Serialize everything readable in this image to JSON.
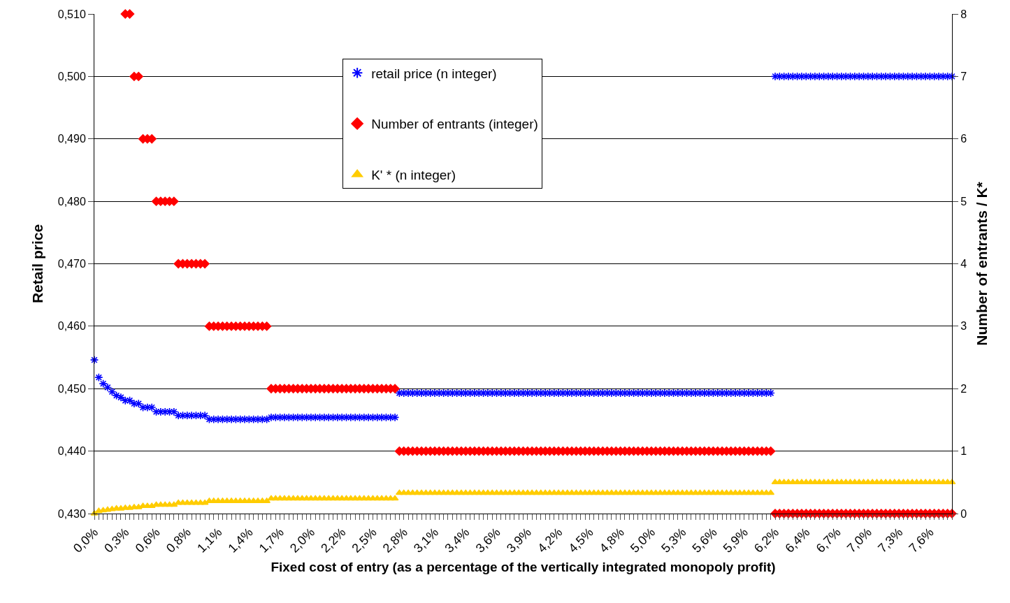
{
  "chart_data": {
    "type": "scatter",
    "xlabel": "Fixed cost of entry (as a percentage of the vertically integrated monopoly profit)",
    "ylabel": "Retail price",
    "y2label": "Number of entrants / K*",
    "categories": [
      "0,0%",
      null,
      null,
      null,
      null,
      null,
      null,
      "0,3%",
      null,
      null,
      null,
      null,
      null,
      null,
      "0,6%",
      null,
      null,
      null,
      null,
      null,
      null,
      "0,8%",
      null,
      null,
      null,
      null,
      null,
      null,
      "1,1%",
      null,
      null,
      null,
      null,
      null,
      null,
      "1,4%",
      null,
      null,
      null,
      null,
      null,
      null,
      "1,7%",
      null,
      null,
      null,
      null,
      null,
      null,
      "2,0%",
      null,
      null,
      null,
      null,
      null,
      null,
      "2,2%",
      null,
      null,
      null,
      null,
      null,
      null,
      "2,5%",
      null,
      null,
      null,
      null,
      null,
      null,
      "2,8%",
      null,
      null,
      null,
      null,
      null,
      null,
      "3,1%",
      null,
      null,
      null,
      null,
      null,
      null,
      "3,4%",
      null,
      null,
      null,
      null,
      null,
      null,
      "3,6%",
      null,
      null,
      null,
      null,
      null,
      null,
      "3,9%",
      null,
      null,
      null,
      null,
      null,
      null,
      "4,2%",
      null,
      null,
      null,
      null,
      null,
      null,
      "4,5%",
      null,
      null,
      null,
      null,
      null,
      null,
      "4,8%",
      null,
      null,
      null,
      null,
      null,
      null,
      "5,0%",
      null,
      null,
      null,
      null,
      null,
      null,
      "5,3%",
      null,
      null,
      null,
      null,
      null,
      null,
      "5,6%",
      null,
      null,
      null,
      null,
      null,
      null,
      "5,9%",
      null,
      null,
      null,
      null,
      null,
      null,
      "6,2%",
      null,
      null,
      null,
      null,
      null,
      null,
      "6,4%",
      null,
      null,
      null,
      null,
      null,
      null,
      "6,7%",
      null,
      null,
      null,
      null,
      null,
      null,
      "7,0%",
      null,
      null,
      null,
      null,
      null,
      null,
      "7,3%",
      null,
      null,
      null,
      null,
      null,
      null,
      "7,6%",
      null,
      null,
      null,
      null,
      null
    ],
    "ylim": [
      0.43,
      0.51
    ],
    "yticks": [
      {
        "value": 0.43,
        "label": "0,430"
      },
      {
        "value": 0.44,
        "label": "0,440"
      },
      {
        "value": 0.45,
        "label": "0,450"
      },
      {
        "value": 0.46,
        "label": "0,460"
      },
      {
        "value": 0.47,
        "label": "0,470"
      },
      {
        "value": 0.48,
        "label": "0,480"
      },
      {
        "value": 0.49,
        "label": "0,490"
      },
      {
        "value": 0.5,
        "label": "0,500"
      },
      {
        "value": 0.51,
        "label": "0,510"
      }
    ],
    "y2lim": [
      0,
      8
    ],
    "y2ticks": [
      0,
      1,
      2,
      3,
      4,
      5,
      6,
      7,
      8
    ],
    "grid": "y",
    "legend": "top",
    "series": [
      {
        "name": "retail price (n integer)",
        "color": "#0000ff",
        "marker": "cross",
        "values": [
          0.4546,
          0.4518,
          0.4508,
          0.4502,
          0.4495,
          0.4489,
          0.4486,
          0.4481,
          0.4481,
          0.4476,
          0.4476,
          0.447,
          0.447,
          0.447,
          0.4463,
          0.4463,
          0.4463,
          0.4463,
          0.4463,
          0.4457,
          0.4457,
          0.4457,
          0.4457,
          0.4457,
          0.4457,
          0.4457,
          0.4451,
          0.4451,
          0.4451,
          0.4451,
          0.4451,
          0.4451,
          0.4451,
          0.4451,
          0.4451,
          0.4451,
          0.4451,
          0.4451,
          0.4451,
          0.4451,
          0.4454,
          0.4454,
          0.4454,
          0.4454,
          0.4454,
          0.4454,
          0.4454,
          0.4454,
          0.4454,
          0.4454,
          0.4454,
          0.4454,
          0.4454,
          0.4454,
          0.4454,
          0.4454,
          0.4454,
          0.4454,
          0.4454,
          0.4454,
          0.4454,
          0.4454,
          0.4454,
          0.4454,
          0.4454,
          0.4454,
          0.4454,
          0.4454,
          0.4454,
          0.4493,
          0.4493,
          0.4493,
          0.4493,
          0.4493,
          0.4493,
          0.4493,
          0.4493,
          0.4493,
          0.4493,
          0.4493,
          0.4493,
          0.4493,
          0.4493,
          0.4493,
          0.4493,
          0.4493,
          0.4493,
          0.4493,
          0.4493,
          0.4493,
          0.4493,
          0.4493,
          0.4493,
          0.4493,
          0.4493,
          0.4493,
          0.4493,
          0.4493,
          0.4493,
          0.4493,
          0.4493,
          0.4493,
          0.4493,
          0.4493,
          0.4493,
          0.4493,
          0.4493,
          0.4493,
          0.4493,
          0.4493,
          0.4493,
          0.4493,
          0.4493,
          0.4493,
          0.4493,
          0.4493,
          0.4493,
          0.4493,
          0.4493,
          0.4493,
          0.4493,
          0.4493,
          0.4493,
          0.4493,
          0.4493,
          0.4493,
          0.4493,
          0.4493,
          0.4493,
          0.4493,
          0.4493,
          0.4493,
          0.4493,
          0.4493,
          0.4493,
          0.4493,
          0.4493,
          0.4493,
          0.4493,
          0.4493,
          0.4493,
          0.4493,
          0.4493,
          0.4493,
          0.4493,
          0.4493,
          0.4493,
          0.4493,
          0.4493,
          0.4493,
          0.4493,
          0.4493,
          0.4493,
          0.4493,
          0.5,
          0.5,
          0.5,
          0.5,
          0.5,
          0.5,
          0.5,
          0.5,
          0.5,
          0.5,
          0.5,
          0.5,
          0.5,
          0.5,
          0.5,
          0.5,
          0.5,
          0.5,
          0.5,
          0.5,
          0.5,
          0.5,
          0.5,
          0.5,
          0.5,
          0.5,
          0.5,
          0.5,
          0.5,
          0.5,
          0.5,
          0.5,
          0.5,
          0.5,
          0.5,
          0.5,
          0.5,
          0.5,
          0.5,
          0.5,
          0.5
        ]
      },
      {
        "name": "Number of entrants (integer)",
        "color": "#ff0000",
        "marker": "diamond",
        "axis": "y2",
        "values": [
          null,
          null,
          null,
          null,
          null,
          null,
          null,
          8,
          8,
          7,
          7,
          6,
          6,
          6,
          5,
          5,
          5,
          5,
          5,
          4,
          4,
          4,
          4,
          4,
          4,
          4,
          3,
          3,
          3,
          3,
          3,
          3,
          3,
          3,
          3,
          3,
          3,
          3,
          3,
          3,
          2,
          2,
          2,
          2,
          2,
          2,
          2,
          2,
          2,
          2,
          2,
          2,
          2,
          2,
          2,
          2,
          2,
          2,
          2,
          2,
          2,
          2,
          2,
          2,
          2,
          2,
          2,
          2,
          2,
          1,
          1,
          1,
          1,
          1,
          1,
          1,
          1,
          1,
          1,
          1,
          1,
          1,
          1,
          1,
          1,
          1,
          1,
          1,
          1,
          1,
          1,
          1,
          1,
          1,
          1,
          1,
          1,
          1,
          1,
          1,
          1,
          1,
          1,
          1,
          1,
          1,
          1,
          1,
          1,
          1,
          1,
          1,
          1,
          1,
          1,
          1,
          1,
          1,
          1,
          1,
          1,
          1,
          1,
          1,
          1,
          1,
          1,
          1,
          1,
          1,
          1,
          1,
          1,
          1,
          1,
          1,
          1,
          1,
          1,
          1,
          1,
          1,
          1,
          1,
          1,
          1,
          1,
          1,
          1,
          1,
          1,
          1,
          1,
          1,
          0,
          0,
          0,
          0,
          0,
          0,
          0,
          0,
          0,
          0,
          0,
          0,
          0,
          0,
          0,
          0,
          0,
          0,
          0,
          0,
          0,
          0,
          0,
          0,
          0,
          0,
          0,
          0,
          0,
          0,
          0,
          0,
          0,
          0,
          0,
          0,
          0,
          0,
          0,
          0,
          0
        ]
      },
      {
        "name": "K' * (n integer)",
        "color": "#ffcc00",
        "marker": "triangle",
        "axis": "y2",
        "values": [
          0,
          0.04,
          0.05,
          0.06,
          0.07,
          0.08,
          0.08,
          0.09,
          0.09,
          0.1,
          0.1,
          0.12,
          0.12,
          0.12,
          0.14,
          0.14,
          0.14,
          0.14,
          0.14,
          0.17,
          0.17,
          0.17,
          0.17,
          0.17,
          0.17,
          0.17,
          0.2,
          0.2,
          0.2,
          0.2,
          0.2,
          0.2,
          0.2,
          0.2,
          0.2,
          0.2,
          0.2,
          0.2,
          0.2,
          0.2,
          0.24,
          0.24,
          0.24,
          0.24,
          0.24,
          0.24,
          0.24,
          0.24,
          0.24,
          0.24,
          0.24,
          0.24,
          0.24,
          0.24,
          0.24,
          0.24,
          0.24,
          0.24,
          0.24,
          0.24,
          0.24,
          0.24,
          0.24,
          0.24,
          0.24,
          0.24,
          0.24,
          0.24,
          0.24,
          0.33,
          0.33,
          0.33,
          0.33,
          0.33,
          0.33,
          0.33,
          0.33,
          0.33,
          0.33,
          0.33,
          0.33,
          0.33,
          0.33,
          0.33,
          0.33,
          0.33,
          0.33,
          0.33,
          0.33,
          0.33,
          0.33,
          0.33,
          0.33,
          0.33,
          0.33,
          0.33,
          0.33,
          0.33,
          0.33,
          0.33,
          0.33,
          0.33,
          0.33,
          0.33,
          0.33,
          0.33,
          0.33,
          0.33,
          0.33,
          0.33,
          0.33,
          0.33,
          0.33,
          0.33,
          0.33,
          0.33,
          0.33,
          0.33,
          0.33,
          0.33,
          0.33,
          0.33,
          0.33,
          0.33,
          0.33,
          0.33,
          0.33,
          0.33,
          0.33,
          0.33,
          0.33,
          0.33,
          0.33,
          0.33,
          0.33,
          0.33,
          0.33,
          0.33,
          0.33,
          0.33,
          0.33,
          0.33,
          0.33,
          0.33,
          0.33,
          0.33,
          0.33,
          0.33,
          0.33,
          0.33,
          0.33,
          0.33,
          0.33,
          0.33,
          0.5,
          0.5,
          0.5,
          0.5,
          0.5,
          0.5,
          0.5,
          0.5,
          0.5,
          0.5,
          0.5,
          0.5,
          0.5,
          0.5,
          0.5,
          0.5,
          0.5,
          0.5,
          0.5,
          0.5,
          0.5,
          0.5,
          0.5,
          0.5,
          0.5,
          0.5,
          0.5,
          0.5,
          0.5,
          0.5,
          0.5,
          0.5,
          0.5,
          0.5,
          0.5,
          0.5,
          0.5,
          0.5,
          0.5,
          0.5,
          0.5
        ]
      }
    ]
  }
}
